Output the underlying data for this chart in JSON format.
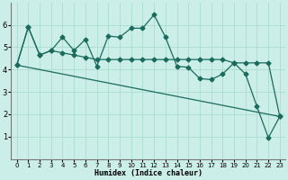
{
  "xlabel": "Humidex (Indice chaleur)",
  "bg_color": "#cceee8",
  "line_color": "#1a6b5e",
  "grid_color": "#aaddcc",
  "xlim": [
    -0.5,
    23.5
  ],
  "ylim": [
    0,
    7
  ],
  "yticks": [
    1,
    2,
    3,
    4,
    5,
    6
  ],
  "xticks": [
    0,
    1,
    2,
    3,
    4,
    5,
    6,
    7,
    8,
    9,
    10,
    11,
    12,
    13,
    14,
    15,
    16,
    17,
    18,
    19,
    20,
    21,
    22,
    23
  ],
  "series1_x": [
    0,
    1,
    2,
    3,
    4,
    5,
    6,
    7,
    8,
    9,
    10,
    11,
    12,
    13,
    14,
    15,
    16,
    17,
    18,
    19,
    20,
    21,
    22,
    23
  ],
  "series1_y": [
    4.2,
    5.9,
    4.65,
    4.85,
    5.45,
    4.85,
    5.35,
    4.15,
    5.5,
    5.45,
    5.85,
    5.85,
    6.45,
    5.45,
    4.15,
    4.1,
    3.6,
    3.55,
    3.8,
    4.3,
    3.8,
    2.35,
    0.95,
    1.9
  ],
  "series2_x": [
    0,
    1,
    2,
    3,
    4,
    5,
    6,
    7,
    8,
    9,
    10,
    11,
    12,
    13,
    14,
    15,
    16,
    17,
    18,
    19,
    20,
    21,
    22,
    23
  ],
  "series2_y": [
    4.2,
    5.9,
    4.65,
    4.85,
    4.75,
    4.65,
    4.55,
    4.45,
    4.45,
    4.45,
    4.45,
    4.45,
    4.45,
    4.45,
    4.45,
    4.45,
    4.45,
    4.45,
    4.45,
    4.3,
    4.3,
    4.3,
    4.3,
    1.9
  ],
  "series3_x": [
    0,
    23
  ],
  "series3_y": [
    4.2,
    1.9
  ],
  "marker_style": "D",
  "marker_size": 2.5,
  "line_width": 0.9
}
